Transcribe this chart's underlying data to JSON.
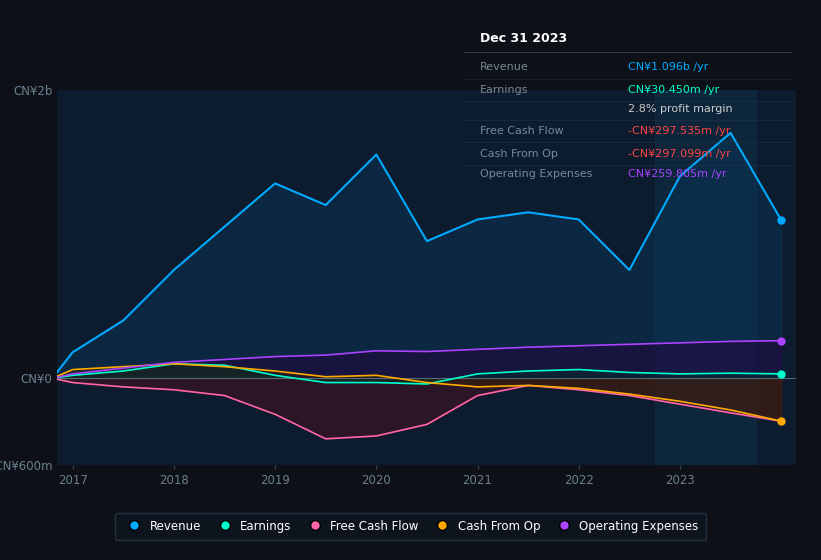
{
  "bg_color": "#0d1117",
  "plot_bg_color": "#0d1b2e",
  "years": [
    2016.8,
    2017,
    2017.5,
    2018,
    2018.5,
    2019,
    2019.5,
    2020,
    2020.5,
    2021,
    2021.5,
    2022,
    2022.5,
    2023,
    2023.5,
    2024.0
  ],
  "revenue": [
    0,
    180,
    400,
    750,
    1050,
    1350,
    1200,
    1550,
    950,
    1100,
    1150,
    1100,
    750,
    1400,
    1700,
    1096
  ],
  "earnings": [
    0,
    20,
    50,
    100,
    90,
    20,
    -30,
    -30,
    -40,
    30,
    50,
    60,
    40,
    30,
    35,
    30
  ],
  "free_cash_flow": [
    0,
    -30,
    -60,
    -80,
    -120,
    -250,
    -420,
    -400,
    -320,
    -120,
    -50,
    -80,
    -120,
    -180,
    -240,
    -298
  ],
  "cash_from_op": [
    0,
    60,
    80,
    100,
    80,
    50,
    10,
    20,
    -30,
    -60,
    -50,
    -70,
    -110,
    -160,
    -220,
    -297
  ],
  "op_expenses": [
    0,
    30,
    70,
    110,
    130,
    150,
    160,
    190,
    185,
    200,
    215,
    225,
    235,
    245,
    255,
    260
  ],
  "revenue_color": "#00aaff",
  "earnings_color": "#00ffcc",
  "fcf_color": "#ff66aa",
  "cashop_color": "#ffaa00",
  "opex_color": "#aa44ff",
  "revenue_fill": "#0a3a5e",
  "earnings_fill": "#003322",
  "fcf_fill": "#4a1020",
  "cashop_fill": "#3a2800",
  "opex_fill": "#220840",
  "ylim": [
    -600,
    2000
  ],
  "yticks": [
    -600,
    0,
    2000
  ],
  "ytick_labels": [
    "-CN¥600m",
    "CN¥0",
    "CN¥2b"
  ],
  "xticks": [
    2017,
    2018,
    2019,
    2020,
    2021,
    2022,
    2023
  ],
  "xlabel_color": "#6a7f90",
  "ylabel_color": "#6a7f90",
  "grid_color": "#1a3550",
  "zero_line_color": "#7a9aaa",
  "highlight_color": "#0d2a40",
  "info_box": {
    "bg": "#0a0e14",
    "border": "#2a3a4a",
    "title": "Dec 31 2023",
    "rows": [
      {
        "label": "Revenue",
        "value": "CN¥1.096b /yr",
        "color": "#00aaff"
      },
      {
        "label": "Earnings",
        "value": "CN¥30.450m /yr",
        "color": "#00ffcc"
      },
      {
        "label": "",
        "value": "2.8% profit margin",
        "color": "#cccccc"
      },
      {
        "label": "Free Cash Flow",
        "value": "-CN¥297.535m /yr",
        "color": "#ff4444"
      },
      {
        "label": "Cash From Op",
        "value": "-CN¥297.099m /yr",
        "color": "#ff4444"
      },
      {
        "label": "Operating Expenses",
        "value": "CN¥259.805m /yr",
        "color": "#aa44ff"
      }
    ]
  },
  "legend": [
    {
      "label": "Revenue",
      "color": "#00aaff"
    },
    {
      "label": "Earnings",
      "color": "#00ffcc"
    },
    {
      "label": "Free Cash Flow",
      "color": "#ff66aa"
    },
    {
      "label": "Cash From Op",
      "color": "#ffaa00"
    },
    {
      "label": "Operating Expenses",
      "color": "#aa44ff"
    }
  ]
}
